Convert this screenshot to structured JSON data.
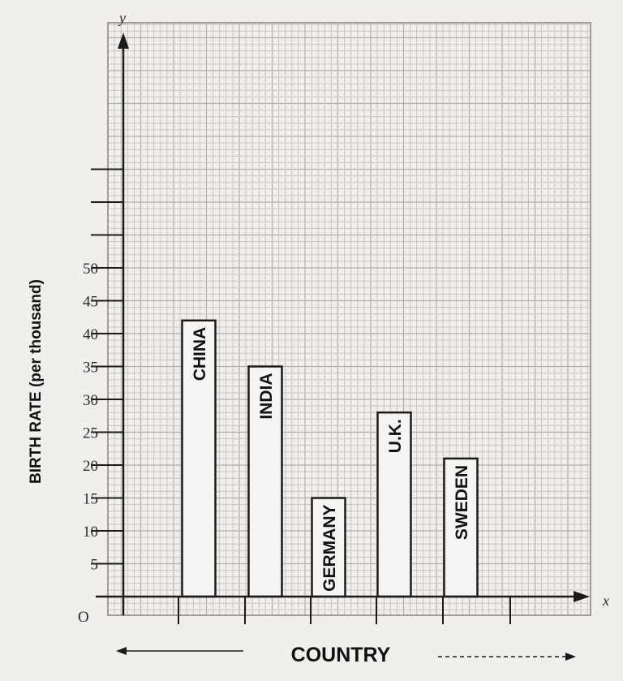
{
  "chart_data": {
    "type": "bar",
    "categories": [
      "CHINA",
      "INDIA",
      "GERMANY",
      "U.K.",
      "SWEDEN"
    ],
    "values": [
      42,
      35,
      15,
      28,
      21
    ],
    "ylabel": "BIRTH RATE (per thousand)",
    "xlabel": "COUNTRY",
    "ylim": [
      0,
      50
    ],
    "yticks": [
      "5",
      "10",
      "15",
      "20",
      "25",
      "30",
      "35",
      "40",
      "45",
      "50"
    ],
    "origin_label": "O",
    "x_axis_letter": "x",
    "y_axis_letter": "y",
    "grid": true,
    "bar_labels_inside_vertical": true
  }
}
